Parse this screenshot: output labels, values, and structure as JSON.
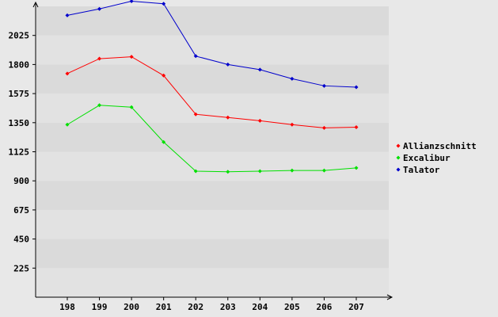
{
  "chart_data": {
    "type": "line",
    "title": "",
    "xlabel": "",
    "ylabel": "",
    "categories": [
      "198",
      "199",
      "200",
      "201",
      "202",
      "203",
      "204",
      "205",
      "206",
      "207"
    ],
    "ylim": [
      0,
      2250
    ],
    "yticks": [
      "225",
      "450",
      "675",
      "900",
      "1125",
      "1350",
      "1575",
      "1800",
      "2025"
    ],
    "grid": true,
    "legend_position": "right",
    "series": [
      {
        "name": "Allianzschnitt",
        "color": "#ff0000",
        "values": [
          1730,
          1845,
          1860,
          1715,
          1415,
          1390,
          1365,
          1335,
          1310,
          1315
        ]
      },
      {
        "name": "Excalibur",
        "color": "#00e000",
        "values": [
          1335,
          1485,
          1470,
          1200,
          975,
          970,
          975,
          980,
          980,
          1000
        ]
      },
      {
        "name": "Talator",
        "color": "#0000cc",
        "values": [
          2180,
          2230,
          2290,
          2270,
          1865,
          1800,
          1760,
          1690,
          1635,
          1625
        ]
      }
    ]
  }
}
